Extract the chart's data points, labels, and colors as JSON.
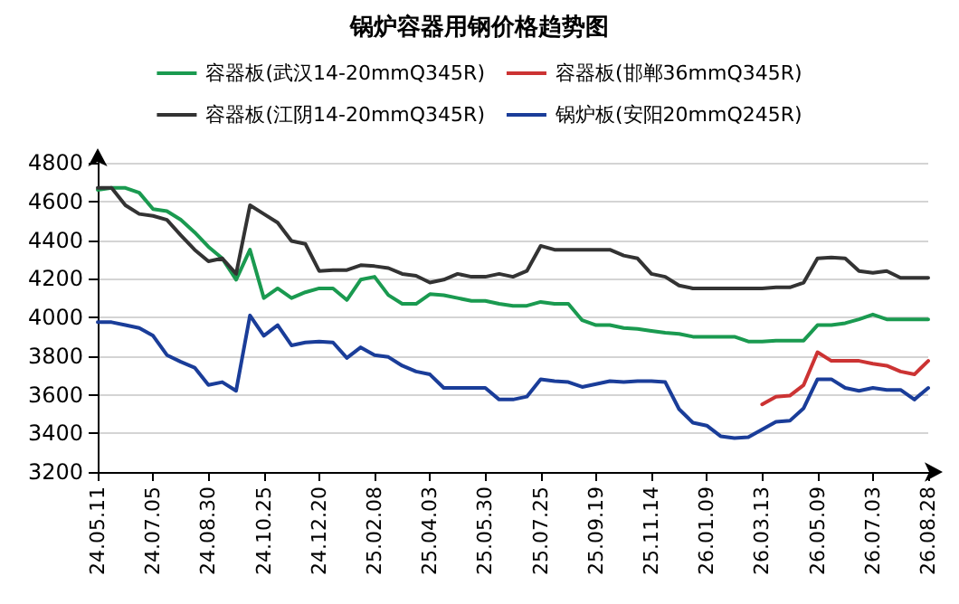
{
  "chart_data": {
    "type": "line",
    "title": "锅炉容器用钢价格趋势图",
    "categories": [
      "24.05.11",
      null,
      null,
      null,
      "24.07.05",
      null,
      null,
      null,
      "24.08.30",
      null,
      null,
      null,
      "24.10.25",
      null,
      null,
      null,
      "24.12.20",
      null,
      null,
      null,
      "25.02.08",
      null,
      null,
      null,
      "25.04.03",
      null,
      null,
      null,
      "25.05.30",
      null,
      null,
      null,
      "25.07.25",
      null,
      null,
      null,
      "25.09.19",
      null,
      null,
      null,
      "25.11.14",
      null,
      null,
      null,
      "26.01.09",
      null,
      null,
      null,
      "26.03.13",
      null,
      null,
      null,
      "26.05.09",
      null,
      null,
      null,
      "26.07.03",
      null,
      null,
      null,
      "26.08.28"
    ],
    "series": [
      {
        "name": "容器板(武汉14-20mmQ345R)",
        "color": "#1a9a50",
        "values": [
          4660,
          4670,
          4670,
          4645,
          4560,
          4550,
          4505,
          4440,
          4365,
          4305,
          4195,
          4350,
          4100,
          4150,
          4100,
          4130,
          4150,
          4150,
          4090,
          4195,
          4210,
          4115,
          4070,
          4070,
          4120,
          4115,
          4100,
          4085,
          4085,
          4070,
          4060,
          4060,
          4080,
          4070,
          4070,
          3985,
          3960,
          3960,
          3945,
          3940,
          3930,
          3920,
          3915,
          3900,
          3900,
          3900,
          3900,
          3875,
          3875,
          3880,
          3880,
          3880,
          3960,
          3960,
          3970,
          3990,
          4015,
          3990,
          3990,
          3990,
          3990
        ]
      },
      {
        "name": "容器板(邯郸36mmQ345R)",
        "color": "#cc3333",
        "values": [
          null,
          null,
          null,
          null,
          null,
          null,
          null,
          null,
          null,
          null,
          null,
          null,
          null,
          null,
          null,
          null,
          null,
          null,
          null,
          null,
          null,
          null,
          null,
          null,
          null,
          null,
          null,
          null,
          null,
          null,
          null,
          null,
          null,
          null,
          null,
          null,
          null,
          null,
          null,
          null,
          null,
          null,
          null,
          null,
          null,
          null,
          null,
          null,
          3550,
          3590,
          3595,
          3650,
          3820,
          3775,
          3775,
          3775,
          3760,
          3750,
          3720,
          3705,
          3775
        ]
      },
      {
        "name": "容器板(江阴14-20mmQ345R)",
        "color": "#333333",
        "values": [
          4670,
          4670,
          4580,
          4535,
          4525,
          4505,
          4425,
          4350,
          4290,
          4305,
          4225,
          4580,
          4535,
          4490,
          4395,
          4380,
          4240,
          4245,
          4245,
          4270,
          4265,
          4255,
          4225,
          4215,
          4180,
          4195,
          4225,
          4210,
          4210,
          4225,
          4210,
          4240,
          4370,
          4350,
          4350,
          4350,
          4350,
          4350,
          4320,
          4305,
          4225,
          4210,
          4165,
          4150,
          4150,
          4150,
          4150,
          4150,
          4150,
          4155,
          4155,
          4180,
          4305,
          4310,
          4305,
          4240,
          4230,
          4240,
          4205,
          4205,
          4205
        ]
      },
      {
        "name": "锅炉板(安阳20mmQ245R)",
        "color": "#1a3d99",
        "values": [
          3975,
          3975,
          3960,
          3945,
          3905,
          3805,
          3770,
          3740,
          3650,
          3665,
          3620,
          4010,
          3905,
          3960,
          3855,
          3870,
          3875,
          3870,
          3790,
          3845,
          3805,
          3795,
          3750,
          3720,
          3705,
          3635,
          3635,
          3635,
          3635,
          3575,
          3575,
          3590,
          3680,
          3670,
          3665,
          3640,
          3655,
          3670,
          3665,
          3670,
          3670,
          3665,
          3525,
          3455,
          3440,
          3385,
          3375,
          3380,
          3420,
          3460,
          3465,
          3530,
          3680,
          3680,
          3635,
          3620,
          3635,
          3625,
          3625,
          3575,
          3635
        ]
      }
    ],
    "ylim": [
      3200,
      4800
    ],
    "yticks": [
      3200,
      3400,
      3600,
      3800,
      4000,
      4200,
      4400,
      4600,
      4800
    ],
    "grid": "y",
    "legend": "top",
    "marker": "none",
    "line_style": "solid"
  }
}
